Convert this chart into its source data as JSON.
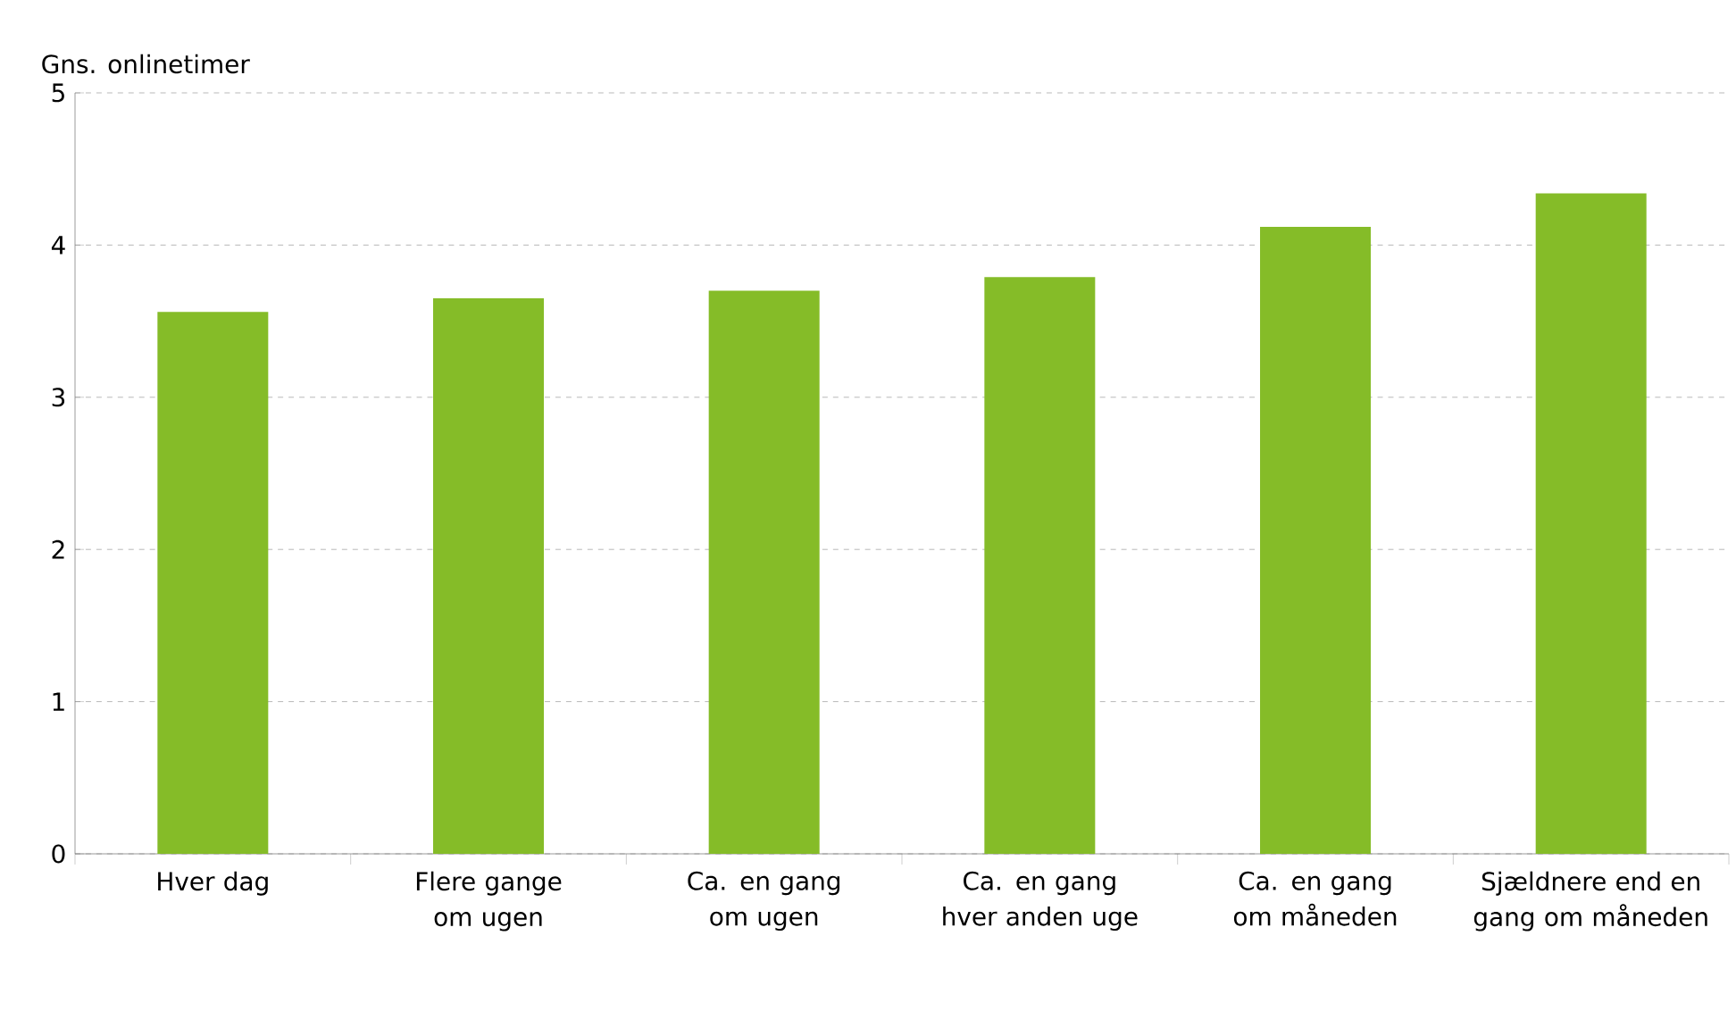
{
  "chart_data": {
    "type": "bar",
    "ylabel": "Gns. onlinetimer",
    "categories": [
      "Hver dag",
      "Flere gange om ugen",
      "Ca. en gang om ugen",
      "Ca. en gang hver anden uge",
      "Ca. en gang om måneden",
      "Sjældnere end en gang om måneden"
    ],
    "values": [
      3.56,
      3.65,
      3.7,
      3.79,
      4.12,
      4.34
    ],
    "color": "#85bc28",
    "ylim": [
      0,
      5
    ],
    "yticks": [
      0,
      1,
      2,
      3,
      4,
      5
    ],
    "grid": "y"
  }
}
